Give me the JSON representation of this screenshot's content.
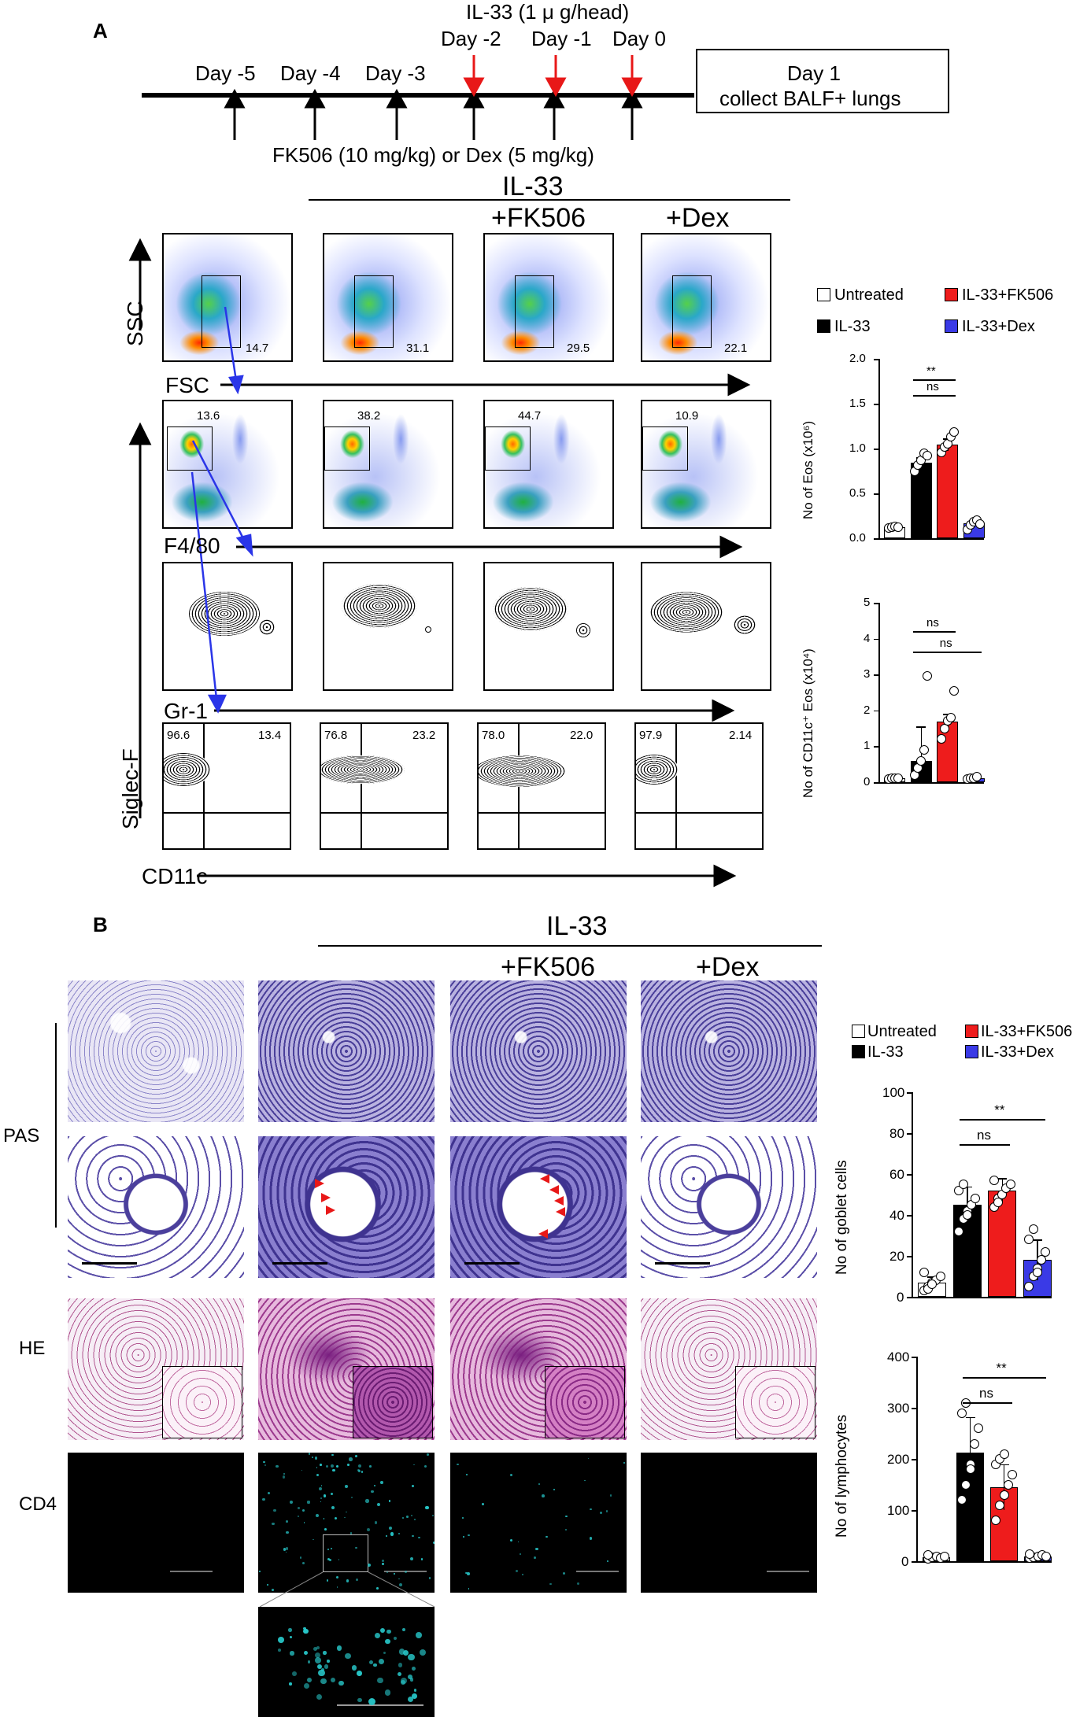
{
  "panel_a": {
    "letter": "A",
    "injection_label": "IL-33 (1 μ g/head)",
    "days": [
      "Day -5",
      "Day -4",
      "Day -3",
      "Day -2",
      "Day -1",
      "Day 0"
    ],
    "treatment_label": "FK506 (10 mg/kg) or Dex (5 mg/kg)",
    "endpoint_line1": "Day 1",
    "endpoint_line2": "collect BALF+ lungs",
    "group_header": "IL-33",
    "col_headers": [
      "+FK506",
      "+Dex"
    ],
    "axis_labels": {
      "ssc": "SSC",
      "fsc": "FSC",
      "f480": "F4/80",
      "gr1": "Gr-1",
      "siglecf": "Siglec-F",
      "cd11c": "CD11c"
    },
    "row1_values": [
      "14.7",
      "31.1",
      "29.5",
      "22.1"
    ],
    "row2_values": [
      "13.6",
      "38.2",
      "44.7",
      "10.9"
    ],
    "row4_left": [
      "96.6",
      "76.8",
      "78.0",
      "97.9"
    ],
    "row4_right": [
      "13.4",
      "23.2",
      "22.0",
      "2.14"
    ]
  },
  "panel_b": {
    "letter": "B",
    "group_header": "IL-33",
    "col_headers": [
      "+FK506",
      "+Dex"
    ],
    "row_labels": [
      "PAS",
      "HE",
      "CD4"
    ]
  },
  "legend": {
    "untreated": "Untreated",
    "il33": "IL-33",
    "fk506": "IL-33+FK506",
    "dex": "IL-33+Dex"
  },
  "colors": {
    "untreated": "#ffffff",
    "il33": "#000000",
    "fk506": "#ee1c1c",
    "dex": "#3a3ae6"
  },
  "chart_data": [
    {
      "type": "bar",
      "categories": [
        "Untreated",
        "IL-33",
        "IL-33+FK506",
        "IL-33+Dex"
      ],
      "values": [
        0.12,
        0.84,
        1.04,
        0.17
      ],
      "errors": [
        0.02,
        0.06,
        0.07,
        0.03
      ],
      "points": [
        [
          0.11,
          0.12,
          0.13,
          0.12
        ],
        [
          0.75,
          0.82,
          0.87,
          0.95,
          0.92
        ],
        [
          0.96,
          1.02,
          1.05,
          1.13,
          1.18
        ],
        [
          0.1,
          0.15,
          0.18,
          0.2,
          0.16
        ]
      ],
      "ylabel": "No of Eos (x10⁶)",
      "ylim": [
        0,
        2.0
      ],
      "yticks": [
        "0.0",
        "0.5",
        "1.0",
        "1.5",
        "2.0"
      ],
      "significance": [
        {
          "label": "**",
          "from": 1,
          "to": 2
        },
        {
          "label": "ns",
          "from": 1,
          "to": 2
        }
      ]
    },
    {
      "type": "bar",
      "categories": [
        "Untreated",
        "IL-33",
        "IL-33+FK506",
        "IL-33+Dex"
      ],
      "values": [
        0.1,
        0.6,
        1.68,
        0.12
      ],
      "errors": [
        0.02,
        0.95,
        0.22,
        0.03
      ],
      "points": [
        [
          0.08,
          0.1,
          0.12,
          0.1
        ],
        [
          0.2,
          0.4,
          0.6,
          0.9,
          2.95
        ],
        [
          1.2,
          1.5,
          1.7,
          1.8,
          2.55
        ],
        [
          0.08,
          0.1,
          0.12,
          0.15
        ]
      ],
      "ylabel": "No of CD11c⁺ Eos (x10⁴)",
      "ylim": [
        0,
        5
      ],
      "yticks": [
        "0",
        "1",
        "2",
        "3",
        "4",
        "5"
      ],
      "significance": [
        {
          "label": "ns",
          "from": 1,
          "to": 2
        },
        {
          "label": "ns",
          "from": 1,
          "to": 3
        }
      ]
    },
    {
      "type": "bar",
      "categories": [
        "Untreated",
        "IL-33",
        "IL-33+FK506",
        "IL-33+Dex"
      ],
      "values": [
        7,
        45,
        52,
        18
      ],
      "errors": [
        3,
        9,
        6,
        10
      ],
      "points": [
        [
          3,
          5,
          7,
          8,
          10,
          12,
          4,
          6
        ],
        [
          32,
          38,
          42,
          45,
          48,
          52,
          55,
          40
        ],
        [
          44,
          48,
          50,
          53,
          55,
          57,
          46
        ],
        [
          5,
          10,
          14,
          18,
          22,
          28,
          33,
          12
        ]
      ],
      "ylabel": "No of goblet cells",
      "ylim": [
        0,
        100
      ],
      "yticks": [
        "0",
        "20",
        "40",
        "60",
        "80",
        "100"
      ],
      "significance": [
        {
          "label": "**",
          "from": 1,
          "to": 3
        },
        {
          "label": "ns",
          "from": 1,
          "to": 2
        }
      ]
    },
    {
      "type": "bar",
      "categories": [
        "Untreated",
        "IL-33",
        "IL-33+FK506",
        "IL-33+Dex"
      ],
      "values": [
        8,
        212,
        145,
        10
      ],
      "errors": [
        4,
        70,
        45,
        4
      ],
      "points": [
        [
          5,
          8,
          10,
          6,
          9,
          12
        ],
        [
          120,
          150,
          190,
          230,
          260,
          290,
          310,
          180
        ],
        [
          80,
          110,
          130,
          150,
          170,
          190,
          200,
          210
        ],
        [
          6,
          8,
          10,
          12,
          9,
          14
        ]
      ],
      "ylabel": "No of lymphocytes",
      "ylim": [
        0,
        400
      ],
      "yticks": [
        "0",
        "100",
        "200",
        "300",
        "400"
      ],
      "significance": [
        {
          "label": "**",
          "from": 1,
          "to": 3
        },
        {
          "label": "ns",
          "from": 1,
          "to": 2
        }
      ]
    }
  ]
}
